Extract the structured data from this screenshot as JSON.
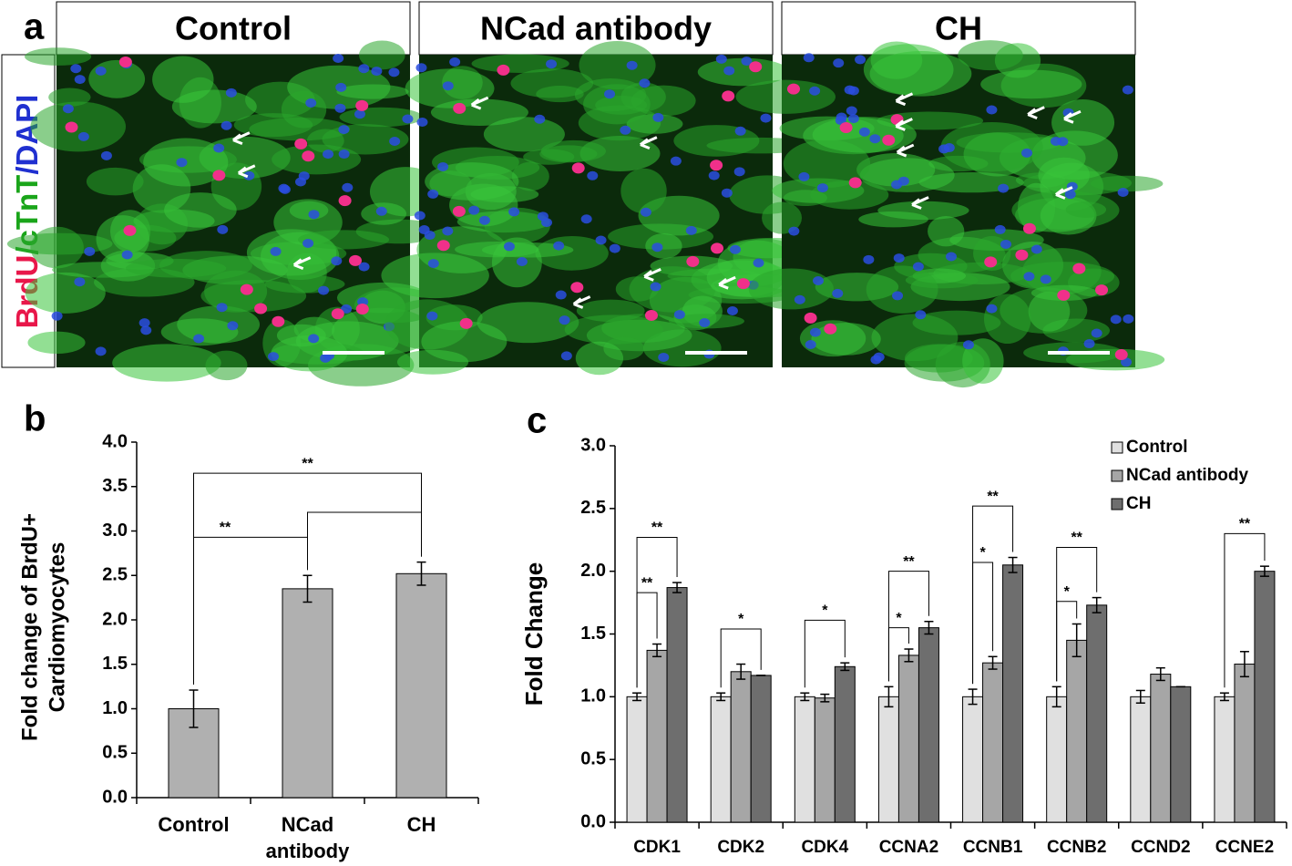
{
  "panels": {
    "a": {
      "panel_label": "a",
      "titles": [
        "Control",
        "NCad antibody",
        "CH"
      ],
      "stain_label": [
        {
          "text": "BrdU",
          "color": "#e8174a"
        },
        {
          "text": "/cTnT",
          "color": "#1aa51a"
        },
        {
          "text": "/DAPI",
          "color": "#2030d0"
        }
      ]
    }
  },
  "chart_data": [
    {
      "type": "bar",
      "panel_label": "b",
      "ylabel": [
        "Fold change of BrdU+",
        "Cardiomyocytes"
      ],
      "categories": [
        "Control",
        "NCad antibody",
        "CH"
      ],
      "values": [
        1.0,
        2.35,
        2.52
      ],
      "errors": [
        0.21,
        0.15,
        0.13
      ],
      "color": "#b0b0b0",
      "ylim": [
        0,
        4
      ],
      "yticks": [
        {
          "value": 0,
          "label": "0.0"
        },
        0.5,
        {
          "value": 1,
          "label": "1.0"
        },
        1.5,
        {
          "value": 2,
          "label": "2.0"
        },
        2.5,
        {
          "value": 3,
          "label": "3.0"
        },
        3.5,
        {
          "value": 4,
          "label": "4.0"
        }
      ],
      "comparisons": [
        {
          "from": 0,
          "to": 1,
          "y": 2.93,
          "label": "**"
        },
        {
          "from": 1,
          "to": 2,
          "y": 3.21
        },
        {
          "from": 0,
          "to": 2,
          "y": 3.65,
          "label": "**"
        }
      ]
    },
    {
      "type": "bar",
      "panel_label": "c",
      "ylabel": "Fold Change",
      "categories": [
        "CDK1",
        "CDK2",
        "CDK4",
        "CCNA2",
        "CCNB1",
        "CCNB2",
        "CCND2",
        "CCNE2"
      ],
      "series": [
        {
          "name": "Control",
          "color": "#e0e0e0",
          "values": [
            1.0,
            1.0,
            1.0,
            1.0,
            1.0,
            1.0,
            1.0,
            1.0
          ],
          "errors": [
            0.03,
            0.03,
            0.03,
            0.08,
            0.06,
            0.08,
            0.05,
            0.03
          ]
        },
        {
          "name": "NCad antibody",
          "color": "#a6a6a6",
          "values": [
            1.37,
            1.2,
            0.99,
            1.33,
            1.27,
            1.45,
            1.18,
            1.26
          ],
          "errors": [
            0.05,
            0.06,
            0.03,
            0.05,
            0.05,
            0.13,
            0.05,
            0.1
          ]
        },
        {
          "name": "CH",
          "color": "#6e6e6e",
          "values": [
            1.87,
            1.17,
            1.24,
            1.55,
            2.05,
            1.73,
            1.08,
            2.0
          ],
          "errors": [
            0.04,
            0.0,
            0.03,
            0.05,
            0.06,
            0.06,
            0.0,
            0.04
          ]
        }
      ],
      "ylim": [
        0,
        3
      ],
      "yticks": [
        {
          "value": 0,
          "label": "0.0"
        },
        0.5,
        {
          "value": 1,
          "label": "1.0"
        },
        1.5,
        {
          "value": 2,
          "label": "2.0"
        },
        2.5,
        {
          "value": 3,
          "label": "3.0"
        }
      ],
      "comparisons": [
        {
          "group": 0,
          "from": 0,
          "to": 1,
          "y": 1.83,
          "label": "**"
        },
        {
          "group": 0,
          "from": 0,
          "to": 2,
          "y": 2.27,
          "label": "**"
        },
        {
          "group": 1,
          "from": 0,
          "to": 2,
          "y": 1.54,
          "label": "*"
        },
        {
          "group": 2,
          "from": 0,
          "to": 2,
          "y": 1.61,
          "label": "*"
        },
        {
          "group": 3,
          "from": 0,
          "to": 1,
          "y": 1.55,
          "label": "*"
        },
        {
          "group": 3,
          "from": 0,
          "to": 2,
          "y": 2.0,
          "label": "**"
        },
        {
          "group": 4,
          "from": 0,
          "to": 1,
          "y": 2.07,
          "label": "*"
        },
        {
          "group": 4,
          "from": 0,
          "to": 2,
          "y": 2.52,
          "label": "**"
        },
        {
          "group": 5,
          "from": 0,
          "to": 1,
          "y": 1.76,
          "label": "*"
        },
        {
          "group": 5,
          "from": 0,
          "to": 2,
          "y": 2.19,
          "label": "**"
        },
        {
          "group": 7,
          "from": 0,
          "to": 2,
          "y": 2.3,
          "label": "**"
        }
      ],
      "legend": "top-right"
    }
  ]
}
